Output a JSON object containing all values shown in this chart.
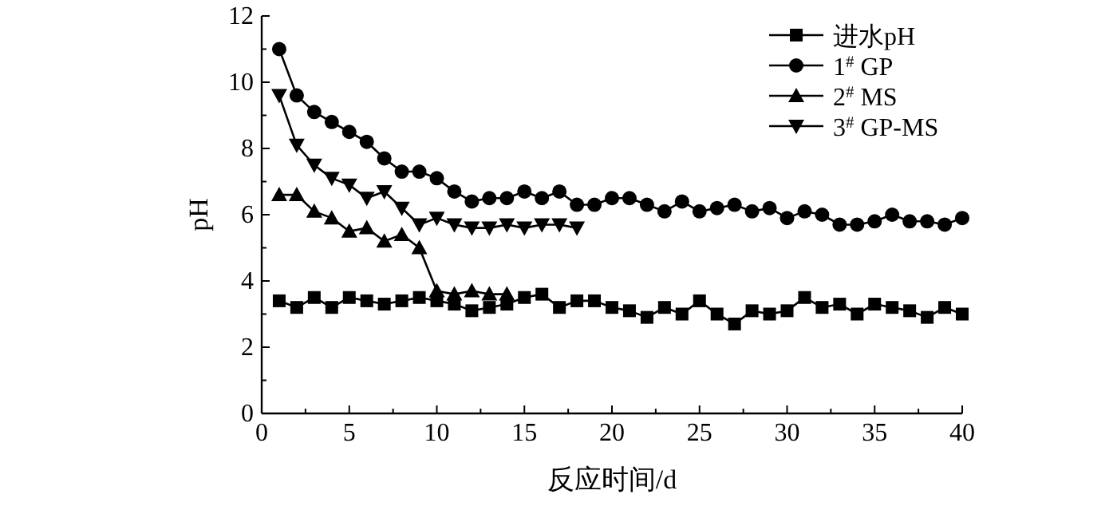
{
  "chart_data": {
    "type": "line",
    "xlabel": "反应时间/d",
    "ylabel": "pH",
    "xlim": [
      0,
      40
    ],
    "ylim": [
      0,
      12
    ],
    "xticks": [
      0,
      {
        "value": 2.5,
        "label": null
      },
      5,
      {
        "value": 7.5,
        "label": null
      },
      10,
      {
        "value": 12.5,
        "label": null
      },
      15,
      {
        "value": 17.5,
        "label": null
      },
      20,
      {
        "value": 22.5,
        "label": null
      },
      25,
      {
        "value": 27.5,
        "label": null
      },
      30,
      {
        "value": 32.5,
        "label": null
      },
      35,
      {
        "value": 37.5,
        "label": null
      },
      40
    ],
    "yticks": [
      0,
      {
        "value": 1,
        "label": null
      },
      2,
      {
        "value": 3,
        "label": null
      },
      4,
      {
        "value": 5,
        "label": null
      },
      6,
      {
        "value": 7,
        "label": null
      },
      8,
      {
        "value": 9,
        "label": null
      },
      10,
      {
        "value": 11,
        "label": null
      },
      12
    ],
    "legend": "top right",
    "series": [
      {
        "name": "进水pH",
        "color": "#000000",
        "marker": "square",
        "x": [
          1,
          2,
          3,
          4,
          5,
          6,
          7,
          8,
          9,
          10,
          11,
          12,
          13,
          14,
          15,
          16,
          17,
          18,
          19,
          20,
          21,
          22,
          23,
          24,
          25,
          26,
          27,
          28,
          29,
          30,
          31,
          32,
          33,
          34,
          35,
          36,
          37,
          38,
          39,
          40
        ],
        "values": [
          3.4,
          3.2,
          3.5,
          3.2,
          3.5,
          3.4,
          3.3,
          3.4,
          3.5,
          3.4,
          3.3,
          3.1,
          3.2,
          3.3,
          3.5,
          3.6,
          3.2,
          3.4,
          3.4,
          3.2,
          3.1,
          2.9,
          3.2,
          3.0,
          3.4,
          3.0,
          2.7,
          3.1,
          3.0,
          3.1,
          3.5,
          3.2,
          3.3,
          3.0,
          3.3,
          3.2,
          3.1,
          2.9,
          3.2,
          3.0
        ]
      },
      {
        "name": "1$^{#}$ GP",
        "color": "#000000",
        "marker": "circle",
        "x": [
          1,
          2,
          3,
          4,
          5,
          6,
          7,
          8,
          9,
          10,
          11,
          12,
          13,
          14,
          15,
          16,
          17,
          18,
          19,
          20,
          21,
          22,
          23,
          24,
          25,
          26,
          27,
          28,
          29,
          30,
          31,
          32,
          33,
          34,
          35,
          36,
          37,
          38,
          39,
          40
        ],
        "values": [
          11.0,
          9.6,
          9.1,
          8.8,
          8.5,
          8.2,
          7.7,
          7.3,
          7.3,
          7.1,
          6.7,
          6.4,
          6.5,
          6.5,
          6.7,
          6.5,
          6.7,
          6.3,
          6.3,
          6.5,
          6.5,
          6.3,
          6.1,
          6.4,
          6.1,
          6.2,
          6.3,
          6.1,
          6.2,
          5.9,
          6.1,
          6.0,
          5.7,
          5.7,
          5.8,
          6.0,
          5.8,
          5.8,
          5.7,
          5.9
        ]
      },
      {
        "name": "2$^{#}$ MS",
        "color": "#000000",
        "marker": "triangle",
        "x": [
          1,
          2,
          3,
          4,
          5,
          6,
          7,
          8,
          9,
          10,
          11,
          12,
          13,
          14
        ],
        "values": [
          6.6,
          6.6,
          6.1,
          5.9,
          5.5,
          5.6,
          5.2,
          5.4,
          5.0,
          3.7,
          3.6,
          3.7,
          3.6,
          3.6
        ]
      },
      {
        "name": "3$^{#}$ GP-MS",
        "color": "#000000",
        "marker": "triangle-down",
        "x": [
          1,
          2,
          3,
          4,
          5,
          6,
          7,
          8,
          9,
          10,
          11,
          12,
          13,
          14,
          15,
          16,
          17,
          18
        ],
        "values": [
          9.6,
          8.1,
          7.5,
          7.1,
          6.9,
          6.5,
          6.7,
          6.2,
          5.7,
          5.9,
          5.7,
          5.6,
          5.6,
          5.7,
          5.6,
          5.7,
          5.7,
          5.6
        ]
      }
    ]
  }
}
